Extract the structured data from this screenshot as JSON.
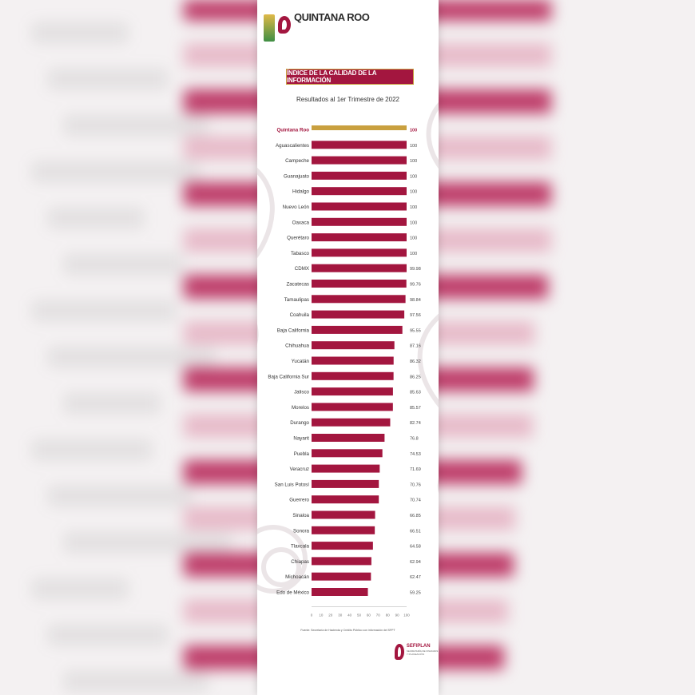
{
  "header": {
    "logo_name": "QUINTANA ROO",
    "title": "ÍNDICE DE LA CALIDAD DE LA INFORMACIÓN",
    "subtitle": "Resultados al 1er Trimestre de 2022"
  },
  "chart_data": {
    "type": "bar",
    "orientation": "horizontal",
    "title": "ÍNDICE DE LA CALIDAD DE LA INFORMACIÓN",
    "subtitle": "Resultados al 1er Trimestre de 2022",
    "categories": [
      "Quintana Roo",
      "Aguascalientes",
      "Campeche",
      "Guanajuato",
      "Hidalgo",
      "Nuevo León",
      "Oaxaca",
      "Querétaro",
      "Tabasco",
      "CDMX",
      "Zacatecas",
      "Tamaulipas",
      "Coahuila",
      "Baja California",
      "Chihuahua",
      "Yucatán",
      "Baja California Sur",
      "Jalisco",
      "Morelos",
      "Durango",
      "Nayarit",
      "Puebla",
      "Veracruz",
      "San Luis Potosí",
      "Guerrero",
      "Sinaloa",
      "Sonora",
      "Tlaxcala",
      "Chiapas",
      "Michoacán",
      "Edo de México"
    ],
    "values": [
      100,
      100,
      100,
      100,
      100,
      100,
      100,
      100,
      100,
      99.98,
      99.76,
      98.84,
      97.56,
      95.55,
      87.16,
      86.32,
      86.25,
      85.63,
      85.57,
      82.74,
      76.8,
      74.53,
      71.69,
      70.76,
      70.74,
      66.85,
      66.51,
      64.58,
      62.94,
      62.47,
      59.25
    ],
    "value_labels": [
      "100",
      "100",
      "100",
      "100",
      "100",
      "100",
      "100",
      "100",
      "100",
      "99.98",
      "99.76",
      "98.84",
      "97.56",
      "95.55",
      "87.16",
      "86.32",
      "86.25",
      "85.63",
      "85.57",
      "82.74",
      "76.8",
      "74.53",
      "71.69",
      "70.76",
      "70.74",
      "66.85",
      "66.51",
      "64.58",
      "62.94",
      "62.47",
      "59.25"
    ],
    "highlight_index": 0,
    "xlim": [
      0,
      100
    ],
    "x_ticks": [
      "0",
      "10",
      "20",
      "30",
      "40",
      "50",
      "60",
      "70",
      "80",
      "90",
      "100"
    ],
    "grid": false,
    "legend": "none",
    "colors": {
      "highlight": "#c9a03f",
      "bar": "#a3163f",
      "highlight_label": "#a3163f"
    }
  },
  "footer": {
    "source": "Fuente: Secretaría de Hacienda y Crédito Público con información del SFPT",
    "brand": "SEFIPLAN",
    "brand_sub": "SECRETARÍA DE FINANZAS Y PLANEACIÓN"
  },
  "background": {
    "band_color": "#b8285a"
  }
}
